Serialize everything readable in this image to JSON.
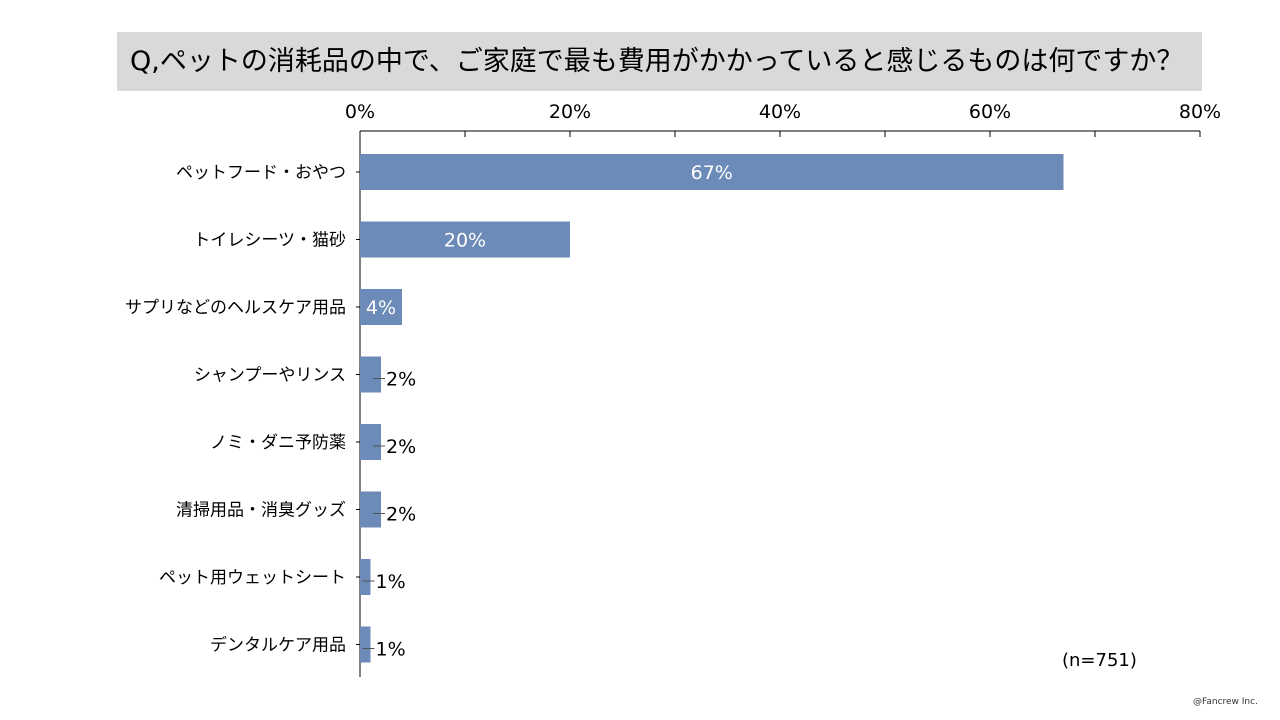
{
  "title": "Q,ペットの消耗品の中で、ご家庭で最も費用がかかっていると感じるものは何ですか？",
  "sample_note": "(n=751)",
  "copyright": "@Fancrew Inc.",
  "colors": {
    "bar": "#6d8bb8",
    "title_band": "#d9d9d9",
    "axis": "#000000"
  },
  "chart_data": {
    "type": "bar",
    "orientation": "horizontal",
    "xlim": [
      0,
      80
    ],
    "x_ticks": [
      0,
      20,
      40,
      60,
      80
    ],
    "x_tick_labels": [
      "0%",
      "20%",
      "40%",
      "60%",
      "80%"
    ],
    "minor_ticks": [
      10,
      30,
      50,
      70
    ],
    "x_axis_position": "top",
    "grid": false,
    "categories": [
      "ペットフード・おやつ",
      "トイレシーツ・猫砂",
      "サプリなどのヘルスケア用品",
      "シャンプーやリンス",
      "ノミ・ダニ予防薬",
      "清掃用品・消臭グッズ",
      "ペット用ウェットシート",
      "デンタルケア用品"
    ],
    "values": [
      67,
      20,
      4,
      2,
      2,
      2,
      1,
      1
    ],
    "value_labels": [
      "67%",
      "20%",
      "4%",
      "2%",
      "2%",
      "2%",
      "1%",
      "1%"
    ]
  }
}
